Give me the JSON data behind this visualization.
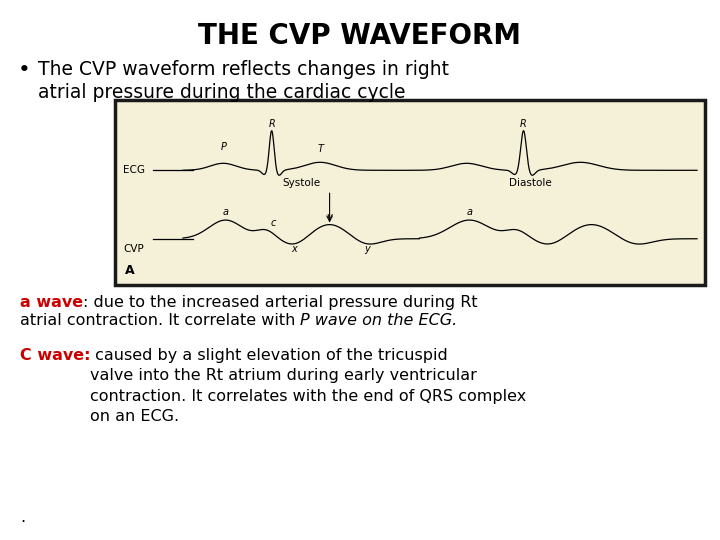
{
  "title": "THE CVP WAVEFORM",
  "bullet_text_line1": "The CVP waveform reflects changes in right",
  "bullet_text_line2": "atrial pressure during the cardiac cycle",
  "image_bg": "#f5f0d8",
  "image_border": "#1a1a1a",
  "ecg_label": "ECG",
  "cvp_label": "CVP",
  "fig_label": "A",
  "systole_label": "Systole",
  "diastole_label": "Diastole",
  "body_text_1_red": "a wave",
  "body_text_1_black_1": ": due to the increased arterial pressure during Rt",
  "body_text_1_black_2": "atrial contraction. It correlate with ",
  "body_text_1_italic": "P wave on the ECG.",
  "body_text_2_red": "C wave:",
  "body_text_2_black": " caused by a slight elevation of the tricuspid\nvalve into the Rt atrium during early ventricular\ncontraction. It correlates with the end of QRS complex\non an ECG.",
  "body_text_3": ".",
  "bg_color": "#ffffff",
  "text_color": "#000000",
  "red_color": "#cc0000",
  "title_fontsize": 20,
  "body_fontsize": 11.5,
  "bullet_fontsize": 13.5
}
